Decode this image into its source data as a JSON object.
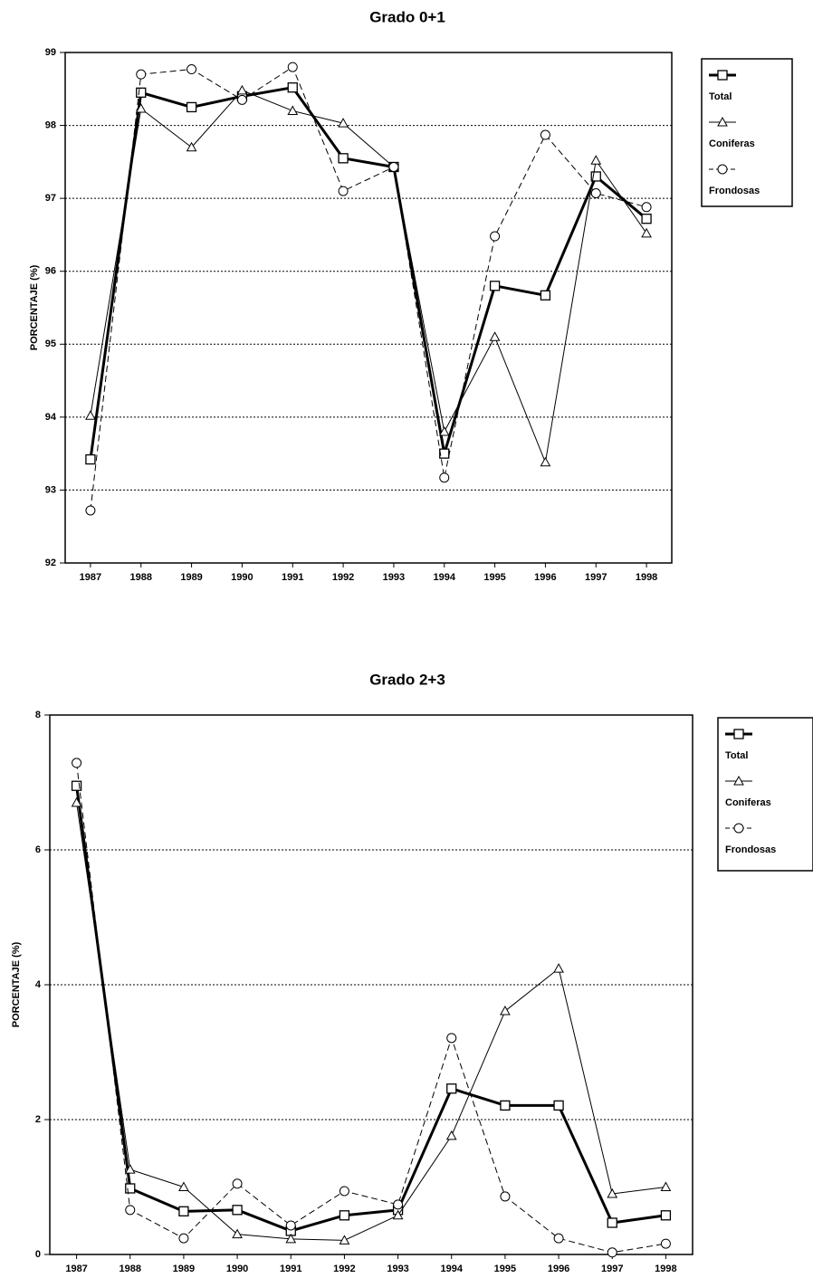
{
  "chart_data": [
    {
      "type": "line",
      "title": "Grado 0+1",
      "y_label": "PORCENTAJE (%)",
      "categories": [
        "1987",
        "1988",
        "1989",
        "1990",
        "1991",
        "1992",
        "1993",
        "1994",
        "1995",
        "1996",
        "1997",
        "1998"
      ],
      "ylim": [
        92,
        99
      ],
      "yticks": [
        92,
        93,
        94,
        95,
        96,
        97,
        98,
        99
      ],
      "grid": true,
      "series": [
        {
          "name": "Total",
          "color": "#000000",
          "marker": "square",
          "dash": false,
          "width": 3,
          "values": [
            93.42,
            98.45,
            98.25,
            98.4,
            98.52,
            97.55,
            97.43,
            93.5,
            95.8,
            95.67,
            97.3,
            96.72
          ]
        },
        {
          "name": "Coniferas",
          "color": "#000000",
          "marker": "triangle",
          "dash": false,
          "width": 1,
          "values": [
            94.02,
            98.23,
            97.7,
            98.48,
            98.2,
            98.03,
            97.43,
            93.8,
            95.1,
            93.38,
            97.52,
            96.52
          ]
        },
        {
          "name": "Frondosas",
          "color": "#000000",
          "marker": "circle",
          "dash": true,
          "width": 1,
          "values": [
            92.72,
            98.7,
            98.77,
            98.35,
            98.8,
            97.1,
            97.43,
            93.17,
            96.48,
            97.87,
            97.07,
            96.88
          ]
        }
      ]
    },
    {
      "type": "line",
      "title": "Grado 2+3",
      "y_label": "PORCENTAJE (%)",
      "categories": [
        "1987",
        "1988",
        "1989",
        "1990",
        "1991",
        "1992",
        "1993",
        "1994",
        "1995",
        "1996",
        "1997",
        "1998"
      ],
      "ylim": [
        0,
        8
      ],
      "yticks": [
        0,
        2,
        4,
        6,
        8
      ],
      "grid": true,
      "series": [
        {
          "name": "Total",
          "color": "#000000",
          "marker": "square",
          "dash": false,
          "width": 3,
          "values": [
            6.95,
            0.98,
            0.64,
            0.66,
            0.35,
            0.58,
            0.66,
            2.46,
            2.21,
            2.21,
            0.47,
            0.58
          ]
        },
        {
          "name": "Coniferas",
          "color": "#000000",
          "marker": "triangle",
          "dash": false,
          "width": 1,
          "values": [
            6.7,
            1.26,
            1.0,
            0.3,
            0.23,
            0.21,
            0.58,
            1.76,
            3.61,
            4.24,
            0.9,
            1.0
          ]
        },
        {
          "name": "Frondosas",
          "color": "#000000",
          "marker": "circle",
          "dash": true,
          "width": 1,
          "values": [
            7.29,
            0.66,
            0.24,
            1.05,
            0.43,
            0.94,
            0.74,
            3.21,
            0.86,
            0.24,
            0.03,
            0.16
          ]
        }
      ]
    }
  ]
}
